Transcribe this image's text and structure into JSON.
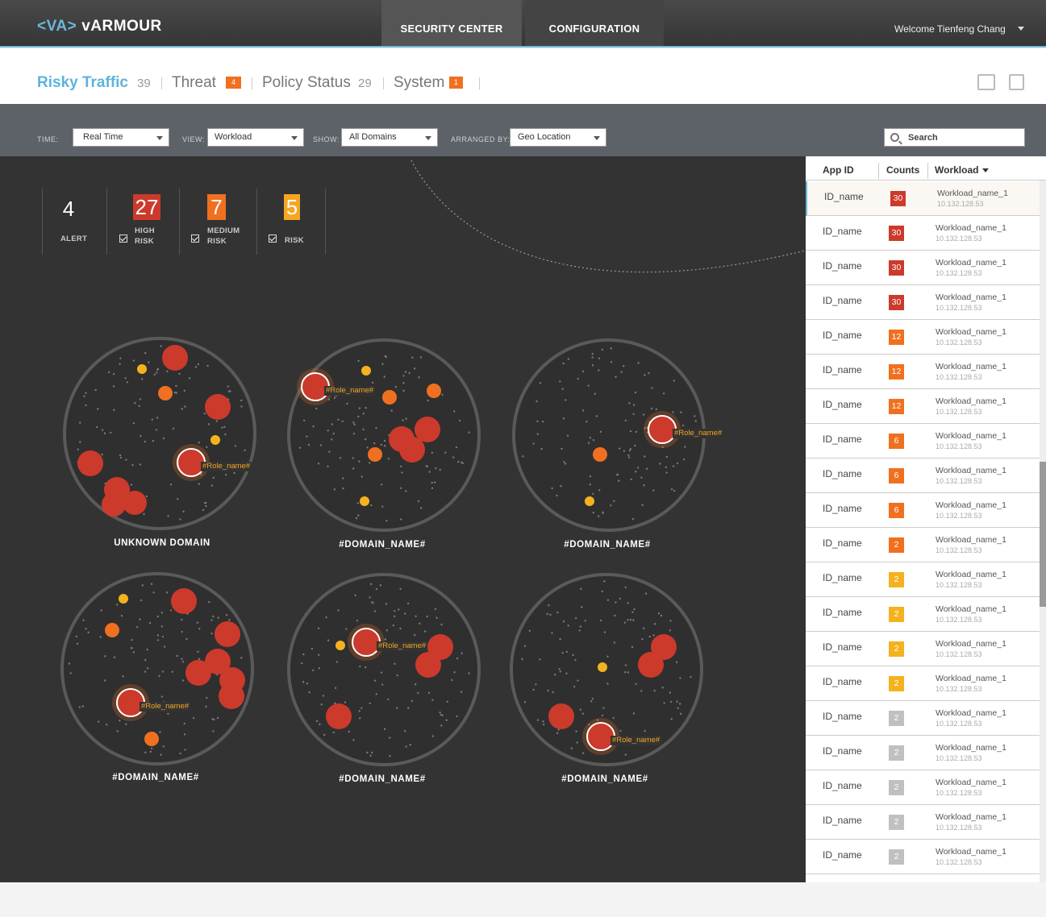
{
  "header": {
    "logo_text": "vARMOUR",
    "logo_mark": "<VA>",
    "nav": [
      {
        "label": "SECURITY CENTER",
        "active": true
      },
      {
        "label": "CONFIGURATION",
        "active": false
      }
    ],
    "welcome": "Welcome Tienfeng Chang"
  },
  "subtabs": [
    {
      "label": "Risky Traffic",
      "count": "39",
      "active": true
    },
    {
      "label": "Threat",
      "badge": "4"
    },
    {
      "label": "Policy Status",
      "count": "29"
    },
    {
      "label": "System",
      "badge": "1"
    }
  ],
  "filters": {
    "time": {
      "label": "TIME:",
      "value": "Real Time"
    },
    "view": {
      "label": "VIEW:",
      "value": "Workload"
    },
    "show": {
      "label": "SHOW:",
      "value": "All Domains"
    },
    "arranged": {
      "label": "ARRANGED BY:",
      "value": "Geo Location"
    },
    "search_placeholder": "Search"
  },
  "stats": {
    "alert": {
      "value": "4",
      "label": "ALERT"
    },
    "high": {
      "value": "27",
      "label": "HIGH\nRISK",
      "color": "#cc3a2c"
    },
    "medium": {
      "value": "7",
      "label": "MEDIUM\nRISK",
      "color": "#f07020"
    },
    "risk": {
      "value": "5",
      "label": "RISK",
      "color": "#f5a623"
    }
  },
  "colors": {
    "high": "#cc3a2c",
    "medium": "#f07020",
    "low": "#f5b21f",
    "gray": "#c0c0c0",
    "accent": "#6bb8d8"
  },
  "domains": [
    {
      "name": "UNKNOWN DOMAIN",
      "role": "#Role_name#"
    },
    {
      "name": "#DOMAIN_NAME#",
      "role": "#Role_name#"
    },
    {
      "name": "#DOMAIN_NAME#",
      "role": "#Role_name#"
    },
    {
      "name": "#DOMAIN_NAME#",
      "role": "#Role_name#"
    },
    {
      "name": "#DOMAIN_NAME#",
      "role": "#Role_name#"
    },
    {
      "name": "#DOMAIN_NAME#",
      "role": "#Role_name#"
    }
  ],
  "table": {
    "headers": [
      "App ID",
      "Counts",
      "Workload"
    ],
    "rows": [
      {
        "app": "ID_name",
        "count": "30",
        "level": "high",
        "workload": "Workload_name_1",
        "ip": "10.132.128.53"
      },
      {
        "app": "ID_name",
        "count": "30",
        "level": "high",
        "workload": "Workload_name_1",
        "ip": "10.132.128.53"
      },
      {
        "app": "ID_name",
        "count": "30",
        "level": "high",
        "workload": "Workload_name_1",
        "ip": "10.132.128.53"
      },
      {
        "app": "ID_name",
        "count": "30",
        "level": "high",
        "workload": "Workload_name_1",
        "ip": "10.132.128.53"
      },
      {
        "app": "ID_name",
        "count": "12",
        "level": "medium",
        "workload": "Workload_name_1",
        "ip": "10.132.128.53"
      },
      {
        "app": "ID_name",
        "count": "12",
        "level": "medium",
        "workload": "Workload_name_1",
        "ip": "10.132.128.53"
      },
      {
        "app": "ID_name",
        "count": "12",
        "level": "medium",
        "workload": "Workload_name_1",
        "ip": "10.132.128.53"
      },
      {
        "app": "ID_name",
        "count": "6",
        "level": "medium",
        "workload": "Workload_name_1",
        "ip": "10.132.128.53"
      },
      {
        "app": "ID_name",
        "count": "6",
        "level": "medium",
        "workload": "Workload_name_1",
        "ip": "10.132.128.53"
      },
      {
        "app": "ID_name",
        "count": "6",
        "level": "medium",
        "workload": "Workload_name_1",
        "ip": "10.132.128.53"
      },
      {
        "app": "ID_name",
        "count": "2",
        "level": "medium",
        "workload": "Workload_name_1",
        "ip": "10.132.128.53"
      },
      {
        "app": "ID_name",
        "count": "2",
        "level": "low",
        "workload": "Workload_name_1",
        "ip": "10.132.128.53"
      },
      {
        "app": "ID_name",
        "count": "2",
        "level": "low",
        "workload": "Workload_name_1",
        "ip": "10.132.128.53"
      },
      {
        "app": "ID_name",
        "count": "2",
        "level": "low",
        "workload": "Workload_name_1",
        "ip": "10.132.128.53"
      },
      {
        "app": "ID_name",
        "count": "2",
        "level": "low",
        "workload": "Workload_name_1",
        "ip": "10.132.128.53"
      },
      {
        "app": "ID_name",
        "count": "2",
        "level": "gray",
        "workload": "Workload_name_1",
        "ip": "10.132.128.53"
      },
      {
        "app": "ID_name",
        "count": "2",
        "level": "gray",
        "workload": "Workload_name_1",
        "ip": "10.132.128.53"
      },
      {
        "app": "ID_name",
        "count": "2",
        "level": "gray",
        "workload": "Workload_name_1",
        "ip": "10.132.128.53"
      },
      {
        "app": "ID_name",
        "count": "2",
        "level": "gray",
        "workload": "Workload_name_1",
        "ip": "10.132.128.53"
      },
      {
        "app": "ID_name",
        "count": "2",
        "level": "gray",
        "workload": "Workload_name_1",
        "ip": "10.132.128.53"
      }
    ]
  }
}
